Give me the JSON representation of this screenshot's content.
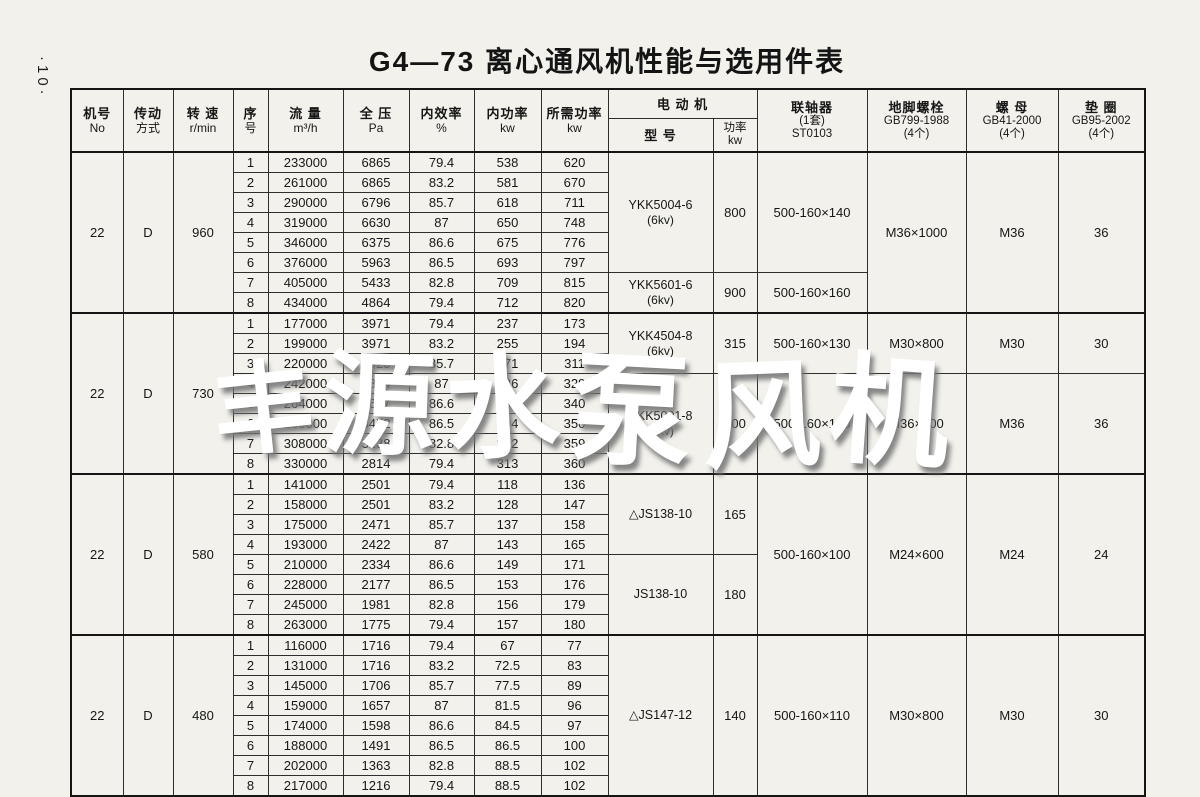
{
  "page": {
    "title": "G4—73 离心通风机性能与选用件表",
    "side_note": "·10·",
    "watermark_chars": [
      "丰",
      "源",
      "水",
      "泵",
      "风",
      "机"
    ]
  },
  "table": {
    "headers": {
      "left": [
        {
          "name": "fan-no",
          "lines": [
            "机号",
            "No"
          ]
        },
        {
          "name": "drive",
          "lines": [
            "传动",
            "方式"
          ]
        },
        {
          "name": "speed",
          "lines": [
            "转 速",
            "r/min"
          ]
        },
        {
          "name": "seq",
          "lines": [
            "序",
            "号"
          ]
        },
        {
          "name": "flow",
          "lines": [
            "流 量",
            "m³/h"
          ]
        },
        {
          "name": "pressure",
          "lines": [
            "全 压",
            "Pa"
          ]
        },
        {
          "name": "efficiency",
          "lines": [
            "内效率",
            "%"
          ]
        },
        {
          "name": "power",
          "lines": [
            "内功率",
            "kw"
          ]
        },
        {
          "name": "required-power",
          "lines": [
            "所需功率",
            "kw"
          ]
        }
      ],
      "motor_group": "电 动 机",
      "motor_model": "型 号",
      "motor_power": [
        "功率",
        "kw"
      ],
      "right": [
        {
          "name": "coupling",
          "lines": [
            "联轴器",
            "(1套)",
            "ST0103"
          ]
        },
        {
          "name": "anchor-bolt",
          "lines": [
            "地脚螺栓",
            "GB799-1988",
            "(4个)"
          ]
        },
        {
          "name": "nut",
          "lines": [
            "螺 母",
            "GB41-2000",
            "(4个)"
          ]
        },
        {
          "name": "washer",
          "lines": [
            "垫 圈",
            "GB95-2002",
            "(4个)"
          ]
        }
      ]
    },
    "groups": [
      {
        "fan_no": "22",
        "drive": "D",
        "speed": "960",
        "rows": [
          [
            "1",
            "233000",
            "6865",
            "79.4",
            "538",
            "620"
          ],
          [
            "2",
            "261000",
            "6865",
            "83.2",
            "581",
            "670"
          ],
          [
            "3",
            "290000",
            "6796",
            "85.7",
            "618",
            "711"
          ],
          [
            "4",
            "319000",
            "6630",
            "87",
            "650",
            "748"
          ],
          [
            "5",
            "346000",
            "6375",
            "86.6",
            "675",
            "776"
          ],
          [
            "6",
            "376000",
            "5963",
            "86.5",
            "693",
            "797"
          ],
          [
            "7",
            "405000",
            "5433",
            "82.8",
            "709",
            "815"
          ],
          [
            "8",
            "434000",
            "4864",
            "79.4",
            "712",
            "820"
          ]
        ],
        "motor_bands": [
          {
            "rows": 6,
            "model": "YKK5004-6",
            "kv": "(6kv)",
            "power": "800"
          },
          {
            "rows": 2,
            "model": "YKK5601-6",
            "kv": "(6kv)",
            "power": "900"
          }
        ],
        "coupling_bands": [
          {
            "rows": 6,
            "value": "500-160×140"
          },
          {
            "rows": 2,
            "value": "500-160×160"
          }
        ],
        "bolt_bands": [
          {
            "rows": 8,
            "value": "M36×1000"
          }
        ],
        "nut_bands": [
          {
            "rows": 8,
            "value": "M36"
          }
        ],
        "washer_bands": [
          {
            "rows": 8,
            "value": "36"
          }
        ]
      },
      {
        "fan_no": "22",
        "drive": "D",
        "speed": "730",
        "rows": [
          [
            "1",
            "177000",
            "3971",
            "79.4",
            "237",
            "173"
          ],
          [
            "2",
            "199000",
            "3971",
            "83.2",
            "255",
            "194"
          ],
          [
            "3",
            "220000",
            "3923",
            "85.7",
            "271",
            "311"
          ],
          [
            "4",
            "242000",
            "3844",
            "87",
            "286",
            "329"
          ],
          [
            "5",
            "264000",
            "3697",
            "86.6",
            "296",
            "340"
          ],
          [
            "6",
            "286000",
            "3452",
            "86.5",
            "304",
            "350"
          ],
          [
            "7",
            "308000",
            "3138",
            "82.8",
            "312",
            "359"
          ],
          [
            "8",
            "330000",
            "2814",
            "79.4",
            "313",
            "360"
          ]
        ],
        "motor_bands": [
          {
            "rows": 3,
            "model": "YKK4504-8",
            "kv": "(6kv)",
            "power": "315"
          },
          {
            "rows": 5,
            "model": "YKK5001-8",
            "kv": "(6kv)",
            "power": "400"
          }
        ],
        "coupling_bands": [
          {
            "rows": 3,
            "value": "500-160×130"
          },
          {
            "rows": 5,
            "value": "500-160×140"
          }
        ],
        "bolt_bands": [
          {
            "rows": 3,
            "value": "M30×800"
          },
          {
            "rows": 5,
            "value": "M36×800"
          }
        ],
        "nut_bands": [
          {
            "rows": 3,
            "value": "M30"
          },
          {
            "rows": 5,
            "value": "M36"
          }
        ],
        "washer_bands": [
          {
            "rows": 3,
            "value": "30"
          },
          {
            "rows": 5,
            "value": "36"
          }
        ]
      },
      {
        "fan_no": "22",
        "drive": "D",
        "speed": "580",
        "rows": [
          [
            "1",
            "141000",
            "2501",
            "79.4",
            "118",
            "136"
          ],
          [
            "2",
            "158000",
            "2501",
            "83.2",
            "128",
            "147"
          ],
          [
            "3",
            "175000",
            "2471",
            "85.7",
            "137",
            "158"
          ],
          [
            "4",
            "193000",
            "2422",
            "87",
            "143",
            "165"
          ],
          [
            "5",
            "210000",
            "2334",
            "86.6",
            "149",
            "171"
          ],
          [
            "6",
            "228000",
            "2177",
            "86.5",
            "153",
            "176"
          ],
          [
            "7",
            "245000",
            "1981",
            "82.8",
            "156",
            "179"
          ],
          [
            "8",
            "263000",
            "1775",
            "79.4",
            "157",
            "180"
          ]
        ],
        "motor_bands": [
          {
            "rows": 4,
            "model": "△JS138-10",
            "kv": "",
            "power": "165"
          },
          {
            "rows": 4,
            "model": "JS138-10",
            "kv": "",
            "power": "180"
          }
        ],
        "coupling_bands": [
          {
            "rows": 8,
            "value": "500-160×100"
          }
        ],
        "bolt_bands": [
          {
            "rows": 8,
            "value": "M24×600"
          }
        ],
        "nut_bands": [
          {
            "rows": 8,
            "value": "M24"
          }
        ],
        "washer_bands": [
          {
            "rows": 8,
            "value": "24"
          }
        ]
      },
      {
        "fan_no": "22",
        "drive": "D",
        "speed": "480",
        "rows": [
          [
            "1",
            "116000",
            "1716",
            "79.4",
            "67",
            "77"
          ],
          [
            "2",
            "131000",
            "1716",
            "83.2",
            "72.5",
            "83"
          ],
          [
            "3",
            "145000",
            "1706",
            "85.7",
            "77.5",
            "89"
          ],
          [
            "4",
            "159000",
            "1657",
            "87",
            "81.5",
            "96"
          ],
          [
            "5",
            "174000",
            "1598",
            "86.6",
            "84.5",
            "97"
          ],
          [
            "6",
            "188000",
            "1491",
            "86.5",
            "86.5",
            "100"
          ],
          [
            "7",
            "202000",
            "1363",
            "82.8",
            "88.5",
            "102"
          ],
          [
            "8",
            "217000",
            "1216",
            "79.4",
            "88.5",
            "102"
          ]
        ],
        "motor_bands": [
          {
            "rows": 8,
            "model": "△JS147-12",
            "kv": "",
            "power": "140"
          }
        ],
        "coupling_bands": [
          {
            "rows": 8,
            "value": "500-160×110"
          }
        ],
        "bolt_bands": [
          {
            "rows": 8,
            "value": "M30×800"
          }
        ],
        "nut_bands": [
          {
            "rows": 8,
            "value": "M30"
          }
        ],
        "washer_bands": [
          {
            "rows": 8,
            "value": "30"
          }
        ]
      }
    ]
  }
}
